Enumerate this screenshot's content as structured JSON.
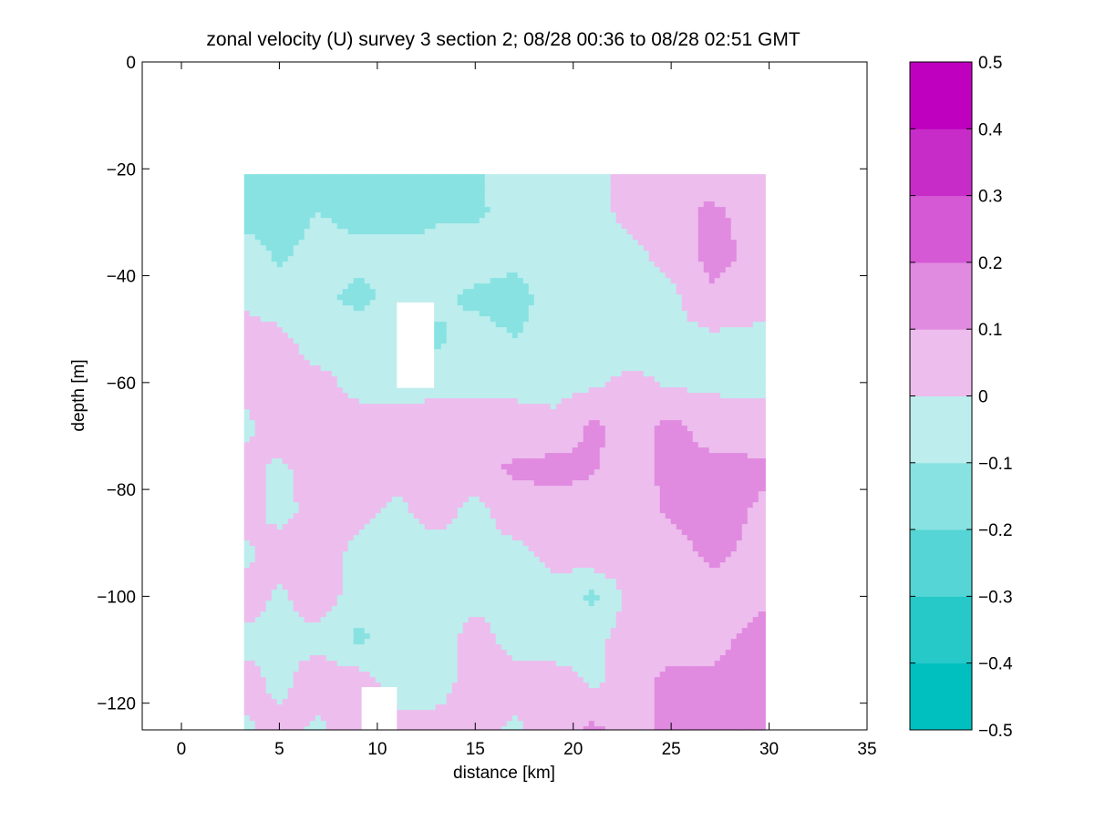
{
  "chart_data": {
    "type": "heatmap",
    "title": "zonal velocity (U) survey 3 section 2; 08/28 00:36 to 08/28 02:51 GMT",
    "xlabel": "distance [km]",
    "ylabel": "depth [m]",
    "xlim": [
      -2,
      35
    ],
    "ylim": [
      -125,
      0
    ],
    "x_ticks": [
      0,
      5,
      10,
      15,
      20,
      25,
      30,
      35
    ],
    "y_ticks": [
      0,
      -20,
      -40,
      -60,
      -80,
      -100,
      -120
    ],
    "x_tick_labels": [
      "0",
      "5",
      "10",
      "15",
      "20",
      "25",
      "30",
      "35"
    ],
    "y_tick_labels": [
      "0",
      "−20",
      "−40",
      "−60",
      "−80",
      "−100",
      "−120"
    ],
    "data_extent": {
      "x": [
        3.2,
        29.8
      ],
      "depth": [
        -21,
        -125
      ]
    },
    "grid": false,
    "colorbar": {
      "levels": [
        -0.5,
        -0.4,
        -0.3,
        -0.2,
        -0.1,
        0,
        0.1,
        0.2,
        0.3,
        0.4,
        0.5
      ],
      "tick_labels": [
        "0.5",
        "0.4",
        "0.3",
        "0.2",
        "0.1",
        "0",
        "−0.1",
        "−0.2",
        "−0.3",
        "−0.4",
        "−0.5"
      ],
      "colors": [
        "#00bfbf",
        "#26c8c8",
        "#55d5d5",
        "#88e2e2",
        "#bdeded",
        "#edbded",
        "#e08ae0",
        "#d558d5",
        "#c82cc8",
        "#bf00bf"
      ],
      "placement": "right"
    },
    "field": {
      "x_nodes": [
        3.2,
        5,
        7,
        9,
        11,
        13,
        15,
        17,
        19,
        21,
        23,
        25,
        27,
        29.8
      ],
      "depth_nodes": [
        -21,
        -28,
        -36,
        -44,
        -52,
        -60,
        -68,
        -76,
        -84,
        -92,
        -100,
        -108,
        -116,
        -125
      ],
      "values": [
        [
          -0.12,
          -0.14,
          -0.12,
          -0.15,
          -0.12,
          -0.13,
          -0.11,
          -0.05,
          -0.04,
          -0.03,
          0.03,
          0.03,
          0.05,
          0.04
        ],
        [
          -0.14,
          -0.15,
          -0.1,
          -0.13,
          -0.15,
          -0.11,
          -0.12,
          -0.06,
          -0.04,
          -0.03,
          0.03,
          0.06,
          0.12,
          0.05
        ],
        [
          -0.05,
          -0.12,
          -0.06,
          -0.08,
          -0.06,
          -0.08,
          -0.05,
          -0.07,
          -0.04,
          -0.03,
          -0.02,
          0.03,
          0.14,
          0.06
        ],
        [
          -0.02,
          -0.06,
          -0.08,
          -0.12,
          -0.08,
          -0.08,
          -0.12,
          -0.14,
          -0.06,
          -0.02,
          -0.03,
          -0.02,
          0.08,
          0.04
        ],
        [
          0.04,
          0.03,
          -0.05,
          -0.06,
          -0.04,
          -0.12,
          -0.06,
          -0.1,
          -0.06,
          -0.02,
          -0.08,
          -0.03,
          -0.02,
          -0.03
        ],
        [
          0.05,
          0.04,
          0.03,
          -0.03,
          -0.06,
          -0.05,
          -0.03,
          -0.02,
          -0.04,
          -0.02,
          0.03,
          -0.02,
          -0.02,
          -0.03
        ],
        [
          -0.03,
          0.06,
          0.05,
          0.04,
          0.05,
          0.08,
          0.04,
          0.03,
          0.03,
          0.12,
          0.06,
          0.13,
          0.05,
          0.04
        ],
        [
          0.04,
          -0.02,
          0.05,
          0.06,
          0.04,
          0.05,
          0.06,
          0.12,
          0.13,
          0.11,
          0.05,
          0.14,
          0.13,
          0.12
        ],
        [
          0.05,
          -0.04,
          0.05,
          0.03,
          -0.02,
          0.04,
          -0.03,
          0.05,
          0.06,
          0.06,
          0.04,
          0.12,
          0.15,
          0.08
        ],
        [
          -0.03,
          0.06,
          0.05,
          -0.03,
          -0.05,
          -0.04,
          -0.02,
          -0.03,
          0.03,
          0.07,
          0.06,
          0.04,
          0.13,
          0.06
        ],
        [
          0.05,
          -0.02,
          0.06,
          -0.05,
          -0.04,
          -0.06,
          -0.04,
          -0.05,
          -0.03,
          -0.12,
          0.04,
          0.06,
          0.04,
          0.08
        ],
        [
          -0.03,
          -0.02,
          -0.03,
          -0.12,
          -0.06,
          -0.05,
          0.05,
          -0.04,
          -0.06,
          -0.03,
          0.05,
          0.05,
          0.07,
          0.14
        ],
        [
          0.04,
          -0.03,
          0.06,
          0.05,
          -0.04,
          -0.06,
          0.06,
          0.04,
          0.05,
          -0.02,
          0.06,
          0.13,
          0.12,
          0.15
        ],
        [
          -0.02,
          0.04,
          -0.02,
          0.05,
          0.03,
          0.05,
          0.04,
          -0.02,
          0.05,
          0.12,
          0.06,
          0.14,
          0.13,
          0.12
        ]
      ]
    },
    "gaps": [
      {
        "x": [
          11.0,
          12.9
        ],
        "depth": [
          -45,
          -61
        ]
      },
      {
        "x": [
          9.2,
          11.0
        ],
        "depth": [
          -117,
          -125
        ]
      }
    ]
  }
}
